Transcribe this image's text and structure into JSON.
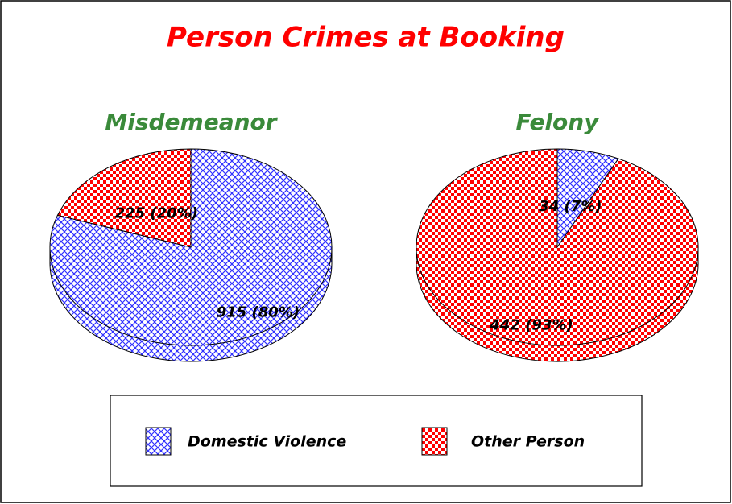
{
  "title": "Person Crimes at Booking",
  "chart_data": [
    {
      "type": "pie",
      "title": "Misdemeanor",
      "categories": [
        "Domestic Violence",
        "Other Person"
      ],
      "values": [
        915,
        225
      ],
      "value_labels": [
        "915 (80%)",
        "225 (20%)"
      ],
      "colors": [
        "#3030ff",
        "#ff0000"
      ]
    },
    {
      "type": "pie",
      "title": "Felony",
      "categories": [
        "Domestic Violence",
        "Other Person"
      ],
      "values": [
        34,
        442
      ],
      "value_labels": [
        "34 (7%)",
        "442 (93%)"
      ],
      "colors": [
        "#3030ff",
        "#ff0000"
      ]
    }
  ]
}
